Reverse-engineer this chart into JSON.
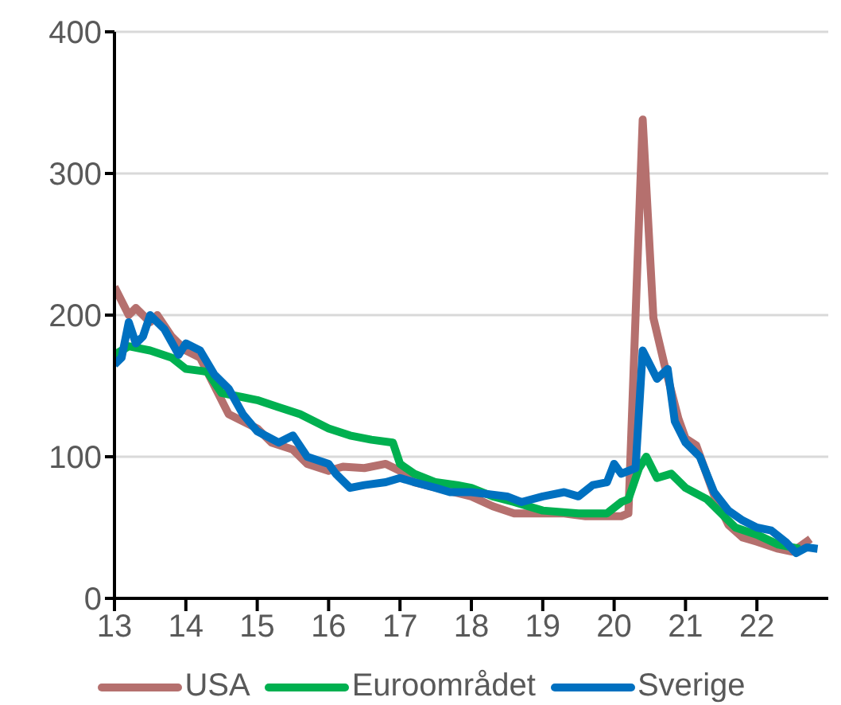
{
  "chart_data": {
    "type": "line",
    "xlim": [
      13,
      23
    ],
    "xticks": [
      13,
      14,
      15,
      16,
      17,
      18,
      19,
      20,
      21,
      22
    ],
    "ylim": [
      0,
      400
    ],
    "yticks": [
      0,
      100,
      200,
      300,
      400
    ],
    "grid": "y",
    "legend": "bottom",
    "marker": "none",
    "line_style": "solid",
    "series": [
      {
        "name": "USA",
        "color": "#b5706e",
        "x": [
          13.0,
          13.2,
          13.3,
          13.5,
          13.6,
          13.8,
          14.0,
          14.2,
          14.4,
          14.6,
          14.8,
          15.0,
          15.2,
          15.5,
          15.7,
          16.0,
          16.2,
          16.5,
          16.8,
          17.0,
          17.2,
          18.0,
          18.3,
          18.6,
          19.0,
          19.3,
          19.6,
          19.9,
          20.1,
          20.2,
          20.4,
          20.55,
          20.7,
          20.9,
          21.0,
          21.15,
          21.4,
          21.6,
          21.8,
          22.0,
          22.3,
          22.5,
          22.75
        ],
        "values": [
          220,
          200,
          205,
          195,
          200,
          185,
          175,
          170,
          150,
          130,
          125,
          120,
          110,
          105,
          95,
          90,
          93,
          92,
          95,
          90,
          82,
          72,
          65,
          60,
          60,
          60,
          58,
          58,
          58,
          60,
          338,
          198,
          166,
          127,
          113,
          108,
          73,
          52,
          43,
          40,
          35,
          33,
          42
        ]
      },
      {
        "name": "Euroområdet",
        "color": "#00b050",
        "x": [
          13.0,
          13.2,
          13.5,
          13.8,
          14.0,
          14.3,
          14.5,
          14.8,
          15.0,
          15.3,
          15.6,
          15.8,
          16.0,
          16.3,
          16.6,
          16.9,
          17.0,
          17.2,
          17.5,
          17.8,
          18.0,
          18.3,
          18.6,
          19.0,
          19.5,
          19.9,
          20.1,
          20.2,
          20.35,
          20.45,
          20.6,
          20.8,
          21.0,
          21.3,
          21.5,
          21.7,
          22.0,
          22.3,
          22.6
        ],
        "values": [
          172,
          178,
          175,
          170,
          162,
          160,
          145,
          142,
          140,
          135,
          130,
          125,
          120,
          115,
          112,
          110,
          95,
          88,
          82,
          80,
          78,
          72,
          68,
          62,
          60,
          60,
          68,
          70,
          92,
          100,
          85,
          88,
          78,
          70,
          60,
          50,
          45,
          38,
          35
        ]
      },
      {
        "name": "Sverige",
        "color": "#0070c0",
        "x": [
          13.0,
          13.1,
          13.2,
          13.3,
          13.4,
          13.5,
          13.7,
          13.9,
          14.0,
          14.2,
          14.4,
          14.6,
          14.8,
          15.0,
          15.3,
          15.5,
          15.7,
          16.0,
          16.1,
          16.3,
          16.5,
          16.8,
          17.0,
          17.2,
          17.5,
          17.7,
          18.0,
          18.5,
          18.7,
          19.0,
          19.3,
          19.5,
          19.7,
          19.9,
          20.0,
          20.1,
          20.3,
          20.4,
          20.6,
          20.75,
          20.85,
          21.0,
          21.2,
          21.4,
          21.6,
          21.8,
          22.0,
          22.2,
          22.4,
          22.55,
          22.7,
          22.85
        ],
        "values": [
          165,
          170,
          195,
          180,
          185,
          200,
          190,
          172,
          180,
          175,
          158,
          148,
          130,
          118,
          110,
          115,
          100,
          95,
          88,
          78,
          80,
          82,
          85,
          82,
          78,
          75,
          75,
          72,
          68,
          72,
          75,
          72,
          80,
          82,
          95,
          88,
          92,
          175,
          155,
          162,
          125,
          110,
          100,
          75,
          62,
          55,
          50,
          48,
          40,
          32,
          36,
          35
        ]
      }
    ]
  }
}
